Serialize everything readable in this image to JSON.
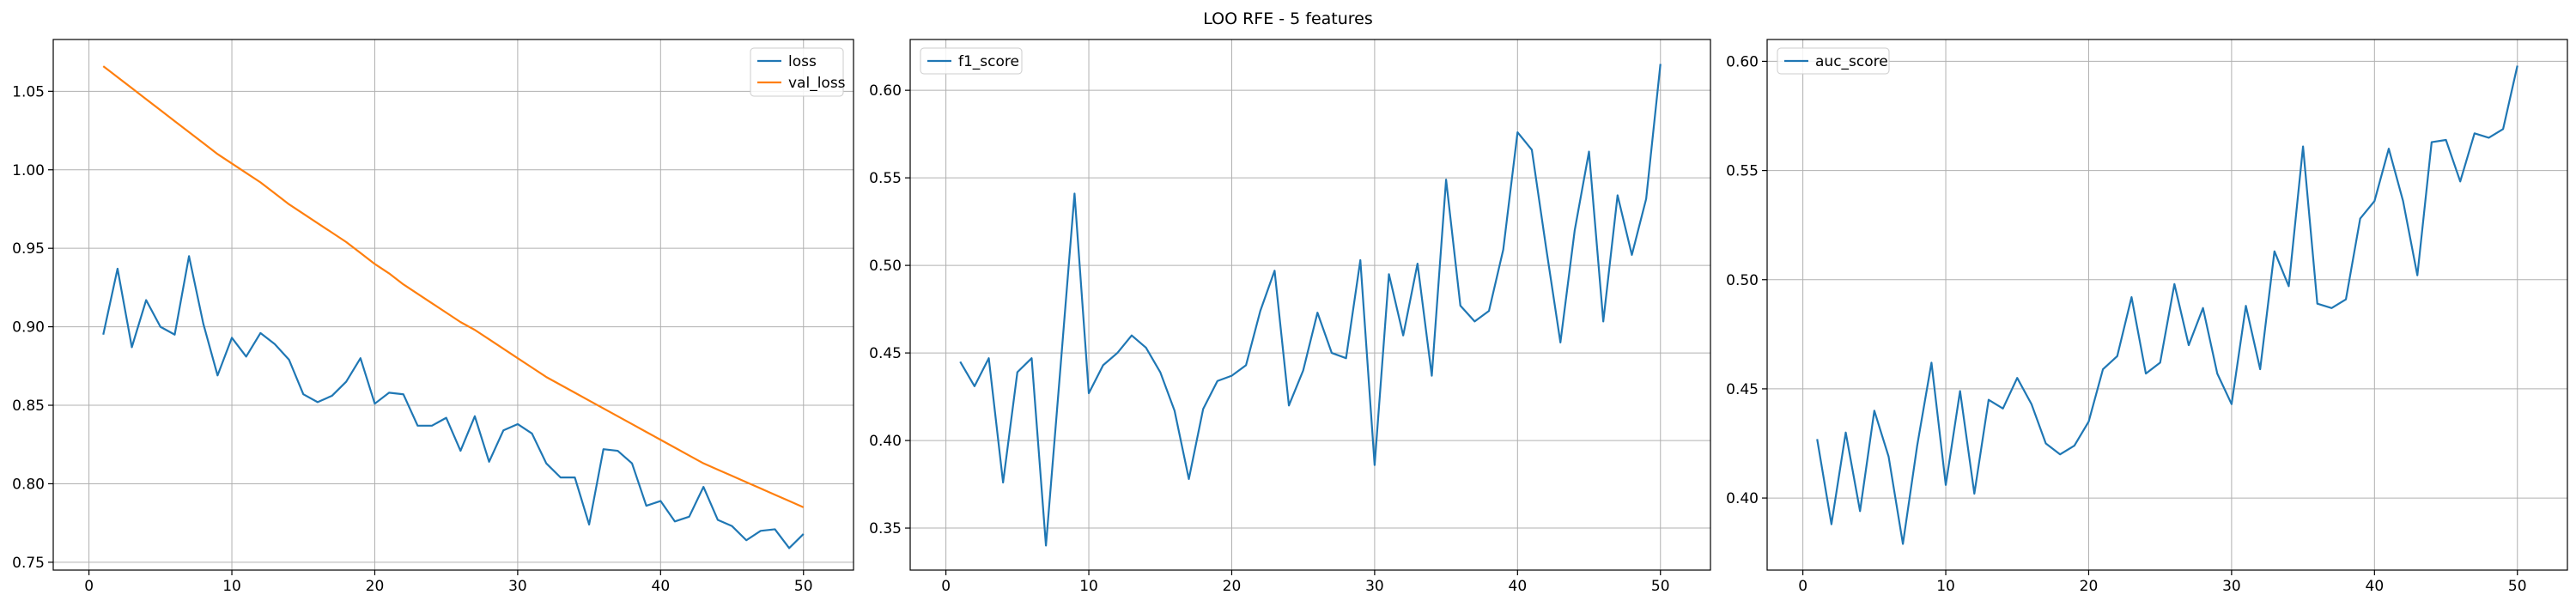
{
  "figure": {
    "title": "LOO RFE - 5 features"
  },
  "chart_data": [
    {
      "type": "line",
      "title": "",
      "xlabel": "",
      "ylabel": "",
      "xlim": [
        -2.5,
        53.5
      ],
      "ylim": [
        0.745,
        1.083
      ],
      "xticks": [
        0,
        10,
        20,
        30,
        40,
        50
      ],
      "yticks": [
        0.75,
        0.8,
        0.85,
        0.9,
        0.95,
        1.0,
        1.05
      ],
      "ytick_decimals": 2,
      "grid": true,
      "legend": "top-right",
      "x": [
        1,
        2,
        3,
        4,
        5,
        6,
        7,
        8,
        9,
        10,
        11,
        12,
        13,
        14,
        15,
        16,
        17,
        18,
        19,
        20,
        21,
        22,
        23,
        24,
        25,
        26,
        27,
        28,
        29,
        30,
        31,
        32,
        33,
        34,
        35,
        36,
        37,
        38,
        39,
        40,
        41,
        42,
        43,
        44,
        45,
        46,
        47,
        48,
        49,
        50
      ],
      "series": [
        {
          "name": "loss",
          "color": "#1f77b4",
          "values": [
            0.895,
            0.937,
            0.887,
            0.917,
            0.9,
            0.895,
            0.945,
            0.902,
            0.869,
            0.893,
            0.881,
            0.896,
            0.889,
            0.879,
            0.857,
            0.852,
            0.856,
            0.865,
            0.88,
            0.851,
            0.858,
            0.857,
            0.837,
            0.837,
            0.842,
            0.821,
            0.843,
            0.814,
            0.834,
            0.838,
            0.832,
            0.813,
            0.804,
            0.804,
            0.774,
            0.822,
            0.821,
            0.813,
            0.786,
            0.789,
            0.776,
            0.779,
            0.798,
            0.777,
            0.773,
            0.764,
            0.77,
            0.771,
            0.759,
            0.768
          ]
        },
        {
          "name": "val_loss",
          "color": "#ff7f0e",
          "values": [
            1.066,
            1.059,
            1.052,
            1.045,
            1.038,
            1.031,
            1.024,
            1.017,
            1.01,
            1.004,
            0.998,
            0.992,
            0.985,
            0.978,
            0.972,
            0.966,
            0.96,
            0.954,
            0.947,
            0.94,
            0.934,
            0.927,
            0.921,
            0.915,
            0.909,
            0.903,
            0.898,
            0.892,
            0.886,
            0.88,
            0.874,
            0.868,
            0.863,
            0.858,
            0.853,
            0.848,
            0.843,
            0.838,
            0.833,
            0.828,
            0.823,
            0.818,
            0.813,
            0.809,
            0.805,
            0.801,
            0.797,
            0.793,
            0.789,
            0.785
          ]
        }
      ]
    },
    {
      "type": "line",
      "title": "",
      "xlabel": "",
      "ylabel": "",
      "xlim": [
        -2.5,
        53.5
      ],
      "ylim": [
        0.326,
        0.629
      ],
      "xticks": [
        0,
        10,
        20,
        30,
        40,
        50
      ],
      "yticks": [
        0.35,
        0.4,
        0.45,
        0.5,
        0.55,
        0.6
      ],
      "ytick_decimals": 2,
      "grid": true,
      "legend": "top-left",
      "x": [
        1,
        2,
        3,
        4,
        5,
        6,
        7,
        8,
        9,
        10,
        11,
        12,
        13,
        14,
        15,
        16,
        17,
        18,
        19,
        20,
        21,
        22,
        23,
        24,
        25,
        26,
        27,
        28,
        29,
        30,
        31,
        32,
        33,
        34,
        35,
        36,
        37,
        38,
        39,
        40,
        41,
        42,
        43,
        44,
        45,
        46,
        47,
        48,
        49,
        50
      ],
      "series": [
        {
          "name": "f1_score",
          "color": "#1f77b4",
          "values": [
            0.445,
            0.431,
            0.447,
            0.376,
            0.439,
            0.447,
            0.34,
            0.44,
            0.541,
            0.427,
            0.443,
            0.45,
            0.46,
            0.453,
            0.439,
            0.417,
            0.378,
            0.418,
            0.434,
            0.437,
            0.443,
            0.474,
            0.497,
            0.42,
            0.44,
            0.473,
            0.45,
            0.447,
            0.503,
            0.386,
            0.495,
            0.46,
            0.501,
            0.437,
            0.549,
            0.477,
            0.468,
            0.474,
            0.509,
            0.576,
            0.566,
            0.51,
            0.456,
            0.52,
            0.565,
            0.468,
            0.54,
            0.506,
            0.538,
            0.615
          ]
        }
      ]
    },
    {
      "type": "line",
      "title": "",
      "xlabel": "",
      "ylabel": "",
      "xlim": [
        -2.5,
        53.5
      ],
      "ylim": [
        0.367,
        0.61
      ],
      "xticks": [
        0,
        10,
        20,
        30,
        40,
        50
      ],
      "yticks": [
        0.4,
        0.45,
        0.5,
        0.55,
        0.6
      ],
      "ytick_decimals": 2,
      "grid": true,
      "legend": "top-left",
      "x": [
        1,
        2,
        3,
        4,
        5,
        6,
        7,
        8,
        9,
        10,
        11,
        12,
        13,
        14,
        15,
        16,
        17,
        18,
        19,
        20,
        21,
        22,
        23,
        24,
        25,
        26,
        27,
        28,
        29,
        30,
        31,
        32,
        33,
        34,
        35,
        36,
        37,
        38,
        39,
        40,
        41,
        42,
        43,
        44,
        45,
        46,
        47,
        48,
        49,
        50
      ],
      "series": [
        {
          "name": "auc_score",
          "color": "#1f77b4",
          "values": [
            0.427,
            0.388,
            0.43,
            0.394,
            0.44,
            0.419,
            0.379,
            0.424,
            0.462,
            0.406,
            0.449,
            0.402,
            0.445,
            0.441,
            0.455,
            0.443,
            0.425,
            0.42,
            0.424,
            0.435,
            0.459,
            0.465,
            0.492,
            0.457,
            0.462,
            0.498,
            0.47,
            0.487,
            0.457,
            0.443,
            0.488,
            0.459,
            0.513,
            0.497,
            0.561,
            0.489,
            0.487,
            0.491,
            0.528,
            0.536,
            0.56,
            0.536,
            0.502,
            0.563,
            0.564,
            0.545,
            0.567,
            0.565,
            0.569,
            0.598
          ]
        }
      ]
    }
  ]
}
